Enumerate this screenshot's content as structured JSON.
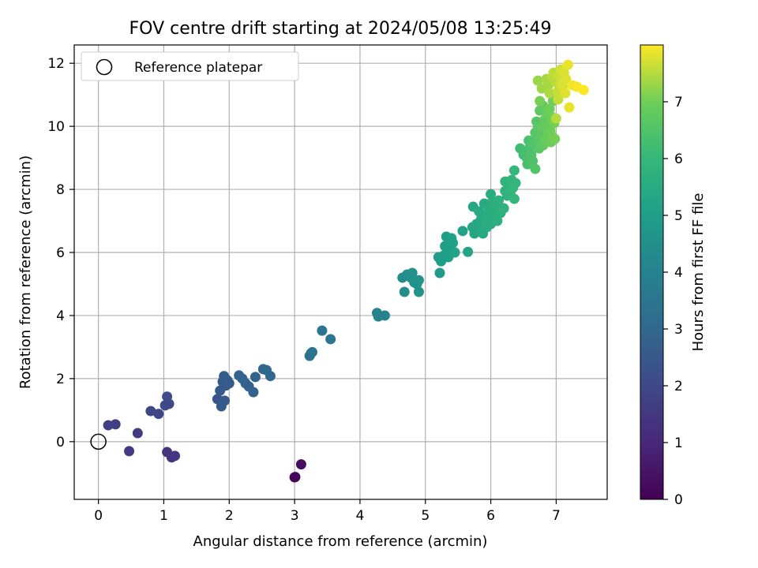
{
  "chart_data": {
    "type": "scatter",
    "title": "FOV centre drift starting at 2024/05/08 13:25:49",
    "xlabel": "Angular distance from reference (arcmin)",
    "ylabel": "Rotation from reference (arcmin)",
    "xlim": [
      -0.37,
      7.78
    ],
    "ylim": [
      -1.83,
      12.58
    ],
    "xticks": [
      0,
      1,
      2,
      3,
      4,
      5,
      6,
      7
    ],
    "yticks": [
      0,
      2,
      4,
      6,
      8,
      10,
      12
    ],
    "grid": true,
    "colormap": "viridis",
    "legend": {
      "placement": "top-left",
      "label": "Reference platepar"
    },
    "reference": {
      "x": 0,
      "y": 0
    },
    "colorbar": {
      "label": "Hours from first FF file",
      "min": 0,
      "max": 8,
      "ticks": [
        0,
        1,
        2,
        3,
        4,
        5,
        6,
        7
      ]
    },
    "series": [
      {
        "points": [
          {
            "x": 3.0,
            "y": -1.13,
            "c": 0.1
          },
          {
            "x": 3.01,
            "y": -1.12,
            "c": 0.15
          },
          {
            "x": 3.1,
            "y": -0.72,
            "c": 0.3
          },
          {
            "x": 0.47,
            "y": -0.3,
            "c": 1.5
          },
          {
            "x": 1.05,
            "y": -0.33,
            "c": 1.4
          },
          {
            "x": 1.12,
            "y": -0.5,
            "c": 1.4
          },
          {
            "x": 1.17,
            "y": -0.45,
            "c": 1.45
          },
          {
            "x": 0.15,
            "y": 0.52,
            "c": 1.7
          },
          {
            "x": 0.26,
            "y": 0.55,
            "c": 1.7
          },
          {
            "x": 0.6,
            "y": 0.27,
            "c": 1.6
          },
          {
            "x": 0.8,
            "y": 0.97,
            "c": 1.9
          },
          {
            "x": 0.92,
            "y": 0.88,
            "c": 1.9
          },
          {
            "x": 1.02,
            "y": 1.15,
            "c": 2.0
          },
          {
            "x": 1.08,
            "y": 1.2,
            "c": 2.0
          },
          {
            "x": 1.05,
            "y": 1.43,
            "c": 2.05
          },
          {
            "x": 1.82,
            "y": 1.35,
            "c": 2.4
          },
          {
            "x": 1.86,
            "y": 1.62,
            "c": 2.5
          },
          {
            "x": 1.88,
            "y": 1.12,
            "c": 2.5
          },
          {
            "x": 1.9,
            "y": 1.9,
            "c": 2.5
          },
          {
            "x": 1.93,
            "y": 1.3,
            "c": 2.5
          },
          {
            "x": 1.95,
            "y": 1.78,
            "c": 2.55
          },
          {
            "x": 1.92,
            "y": 2.08,
            "c": 2.55
          },
          {
            "x": 1.97,
            "y": 1.95,
            "c": 2.6
          },
          {
            "x": 2.0,
            "y": 1.85,
            "c": 2.6
          },
          {
            "x": 2.15,
            "y": 2.1,
            "c": 2.75
          },
          {
            "x": 2.2,
            "y": 2.0,
            "c": 2.8
          },
          {
            "x": 2.25,
            "y": 1.85,
            "c": 2.8
          },
          {
            "x": 2.3,
            "y": 1.75,
            "c": 2.85
          },
          {
            "x": 2.37,
            "y": 1.57,
            "c": 2.85
          },
          {
            "x": 2.4,
            "y": 2.05,
            "c": 2.9
          },
          {
            "x": 2.52,
            "y": 2.3,
            "c": 3.0
          },
          {
            "x": 2.57,
            "y": 2.27,
            "c": 3.0
          },
          {
            "x": 2.63,
            "y": 2.08,
            "c": 3.05
          },
          {
            "x": 3.23,
            "y": 2.72,
            "c": 3.4
          },
          {
            "x": 3.25,
            "y": 2.8,
            "c": 3.4
          },
          {
            "x": 3.27,
            "y": 2.84,
            "c": 3.45
          },
          {
            "x": 3.42,
            "y": 3.52,
            "c": 3.5
          },
          {
            "x": 3.55,
            "y": 3.25,
            "c": 3.55
          },
          {
            "x": 4.26,
            "y": 4.08,
            "c": 4.0
          },
          {
            "x": 4.28,
            "y": 3.97,
            "c": 4.0
          },
          {
            "x": 4.38,
            "y": 4.0,
            "c": 4.05
          },
          {
            "x": 4.65,
            "y": 5.2,
            "c": 4.4
          },
          {
            "x": 4.68,
            "y": 4.75,
            "c": 4.45
          },
          {
            "x": 4.72,
            "y": 5.3,
            "c": 4.45
          },
          {
            "x": 4.78,
            "y": 5.2,
            "c": 4.5
          },
          {
            "x": 4.8,
            "y": 5.35,
            "c": 4.5
          },
          {
            "x": 4.83,
            "y": 5.05,
            "c": 4.55
          },
          {
            "x": 4.87,
            "y": 5.0,
            "c": 4.55
          },
          {
            "x": 4.9,
            "y": 5.12,
            "c": 4.6
          },
          {
            "x": 4.9,
            "y": 4.75,
            "c": 4.6
          },
          {
            "x": 5.2,
            "y": 5.85,
            "c": 4.9
          },
          {
            "x": 5.22,
            "y": 5.35,
            "c": 4.9
          },
          {
            "x": 5.24,
            "y": 5.72,
            "c": 4.95
          },
          {
            "x": 5.28,
            "y": 5.9,
            "c": 4.95
          },
          {
            "x": 5.3,
            "y": 6.2,
            "c": 5.0
          },
          {
            "x": 5.32,
            "y": 6.5,
            "c": 5.0
          },
          {
            "x": 5.35,
            "y": 5.85,
            "c": 5.05
          },
          {
            "x": 5.38,
            "y": 6.1,
            "c": 5.05
          },
          {
            "x": 5.4,
            "y": 6.45,
            "c": 5.1
          },
          {
            "x": 5.42,
            "y": 6.3,
            "c": 5.1
          },
          {
            "x": 5.45,
            "y": 6.0,
            "c": 5.15
          },
          {
            "x": 5.57,
            "y": 6.68,
            "c": 5.2
          },
          {
            "x": 5.65,
            "y": 6.02,
            "c": 5.25
          },
          {
            "x": 5.72,
            "y": 6.8,
            "c": 5.3
          },
          {
            "x": 5.75,
            "y": 6.6,
            "c": 5.3
          },
          {
            "x": 5.73,
            "y": 7.45,
            "c": 5.35
          },
          {
            "x": 5.78,
            "y": 6.9,
            "c": 5.35
          },
          {
            "x": 5.82,
            "y": 7.3,
            "c": 5.4
          },
          {
            "x": 5.85,
            "y": 7.05,
            "c": 5.4
          },
          {
            "x": 5.86,
            "y": 6.75,
            "c": 5.4
          },
          {
            "x": 5.88,
            "y": 6.6,
            "c": 5.45
          },
          {
            "x": 5.9,
            "y": 7.55,
            "c": 5.45
          },
          {
            "x": 5.92,
            "y": 6.95,
            "c": 5.5
          },
          {
            "x": 5.94,
            "y": 6.8,
            "c": 5.5
          },
          {
            "x": 5.95,
            "y": 7.2,
            "c": 5.5
          },
          {
            "x": 5.97,
            "y": 7.4,
            "c": 5.55
          },
          {
            "x": 5.99,
            "y": 7.05,
            "c": 5.55
          },
          {
            "x": 6.0,
            "y": 6.9,
            "c": 5.55
          },
          {
            "x": 6.02,
            "y": 7.6,
            "c": 5.6
          },
          {
            "x": 6.0,
            "y": 7.85,
            "c": 5.6
          },
          {
            "x": 6.05,
            "y": 7.3,
            "c": 5.6
          },
          {
            "x": 6.07,
            "y": 7.5,
            "c": 5.65
          },
          {
            "x": 6.1,
            "y": 7.0,
            "c": 5.65
          },
          {
            "x": 6.12,
            "y": 7.65,
            "c": 5.7
          },
          {
            "x": 6.15,
            "y": 7.25,
            "c": 5.7
          },
          {
            "x": 6.2,
            "y": 7.4,
            "c": 5.75
          },
          {
            "x": 6.22,
            "y": 7.95,
            "c": 5.8
          },
          {
            "x": 6.22,
            "y": 8.25,
            "c": 5.8
          },
          {
            "x": 6.25,
            "y": 7.8,
            "c": 5.8
          },
          {
            "x": 6.28,
            "y": 8.1,
            "c": 5.85
          },
          {
            "x": 6.3,
            "y": 7.9,
            "c": 5.85
          },
          {
            "x": 6.32,
            "y": 8.3,
            "c": 5.9
          },
          {
            "x": 6.34,
            "y": 8.05,
            "c": 5.9
          },
          {
            "x": 6.36,
            "y": 7.7,
            "c": 5.95
          },
          {
            "x": 6.38,
            "y": 8.2,
            "c": 5.95
          },
          {
            "x": 6.36,
            "y": 8.6,
            "c": 6.0
          },
          {
            "x": 6.45,
            "y": 9.3,
            "c": 6.2
          },
          {
            "x": 6.5,
            "y": 9.1,
            "c": 6.25
          },
          {
            "x": 6.52,
            "y": 9.2,
            "c": 6.3
          },
          {
            "x": 6.55,
            "y": 9.0,
            "c": 6.35
          },
          {
            "x": 6.56,
            "y": 8.8,
            "c": 6.35
          },
          {
            "x": 6.58,
            "y": 9.55,
            "c": 6.4
          },
          {
            "x": 6.6,
            "y": 9.35,
            "c": 6.4
          },
          {
            "x": 6.62,
            "y": 9.1,
            "c": 6.45
          },
          {
            "x": 6.64,
            "y": 8.9,
            "c": 6.45
          },
          {
            "x": 6.65,
            "y": 9.45,
            "c": 6.5
          },
          {
            "x": 6.68,
            "y": 8.65,
            "c": 6.5
          },
          {
            "x": 6.68,
            "y": 9.8,
            "c": 6.55
          },
          {
            "x": 6.7,
            "y": 10.15,
            "c": 6.6
          },
          {
            "x": 6.72,
            "y": 9.6,
            "c": 6.6
          },
          {
            "x": 6.72,
            "y": 9.95,
            "c": 6.65
          },
          {
            "x": 6.74,
            "y": 9.3,
            "c": 6.65
          },
          {
            "x": 6.75,
            "y": 10.5,
            "c": 6.7
          },
          {
            "x": 6.76,
            "y": 9.7,
            "c": 6.7
          },
          {
            "x": 6.78,
            "y": 9.95,
            "c": 6.75
          },
          {
            "x": 6.8,
            "y": 9.4,
            "c": 6.75
          },
          {
            "x": 6.8,
            "y": 10.65,
            "c": 6.8
          },
          {
            "x": 6.82,
            "y": 10.2,
            "c": 6.8
          },
          {
            "x": 6.84,
            "y": 9.55,
            "c": 6.85
          },
          {
            "x": 6.85,
            "y": 10.0,
            "c": 6.85
          },
          {
            "x": 6.86,
            "y": 10.4,
            "c": 6.9
          },
          {
            "x": 6.88,
            "y": 9.75,
            "c": 6.9
          },
          {
            "x": 6.9,
            "y": 10.55,
            "c": 6.95
          },
          {
            "x": 6.91,
            "y": 9.85,
            "c": 6.95
          },
          {
            "x": 6.92,
            "y": 9.5,
            "c": 6.95
          },
          {
            "x": 6.93,
            "y": 10.3,
            "c": 7.0
          },
          {
            "x": 6.95,
            "y": 9.65,
            "c": 7.0
          },
          {
            "x": 6.95,
            "y": 10.8,
            "c": 7.0
          },
          {
            "x": 6.97,
            "y": 10.1,
            "c": 7.05
          },
          {
            "x": 6.98,
            "y": 9.6,
            "c": 7.05
          },
          {
            "x": 6.75,
            "y": 10.8,
            "c": 7.05
          },
          {
            "x": 6.72,
            "y": 11.45,
            "c": 7.3
          },
          {
            "x": 6.78,
            "y": 11.2,
            "c": 7.35
          },
          {
            "x": 6.85,
            "y": 11.5,
            "c": 7.4
          },
          {
            "x": 6.88,
            "y": 11.3,
            "c": 7.4
          },
          {
            "x": 6.9,
            "y": 11.05,
            "c": 7.45
          },
          {
            "x": 6.94,
            "y": 11.55,
            "c": 7.5
          },
          {
            "x": 6.96,
            "y": 11.7,
            "c": 7.55
          },
          {
            "x": 7.0,
            "y": 11.4,
            "c": 7.55
          },
          {
            "x": 7.02,
            "y": 11.1,
            "c": 7.6
          },
          {
            "x": 7.03,
            "y": 10.85,
            "c": 7.6
          },
          {
            "x": 7.05,
            "y": 11.6,
            "c": 7.65
          },
          {
            "x": 7.07,
            "y": 11.8,
            "c": 7.7
          },
          {
            "x": 7.08,
            "y": 11.35,
            "c": 7.7
          },
          {
            "x": 7.1,
            "y": 11.25,
            "c": 7.75
          },
          {
            "x": 7.12,
            "y": 11.7,
            "c": 7.75
          },
          {
            "x": 7.14,
            "y": 11.05,
            "c": 7.8
          },
          {
            "x": 7.15,
            "y": 11.5,
            "c": 7.8
          },
          {
            "x": 7.18,
            "y": 11.95,
            "c": 7.85
          },
          {
            "x": 7.2,
            "y": 10.6,
            "c": 7.85
          },
          {
            "x": 7.25,
            "y": 11.3,
            "c": 7.9
          },
          {
            "x": 7.32,
            "y": 11.25,
            "c": 7.95
          },
          {
            "x": 7.42,
            "y": 11.15,
            "c": 8.0
          },
          {
            "x": 7.0,
            "y": 10.25,
            "c": 7.5
          }
        ]
      }
    ]
  }
}
